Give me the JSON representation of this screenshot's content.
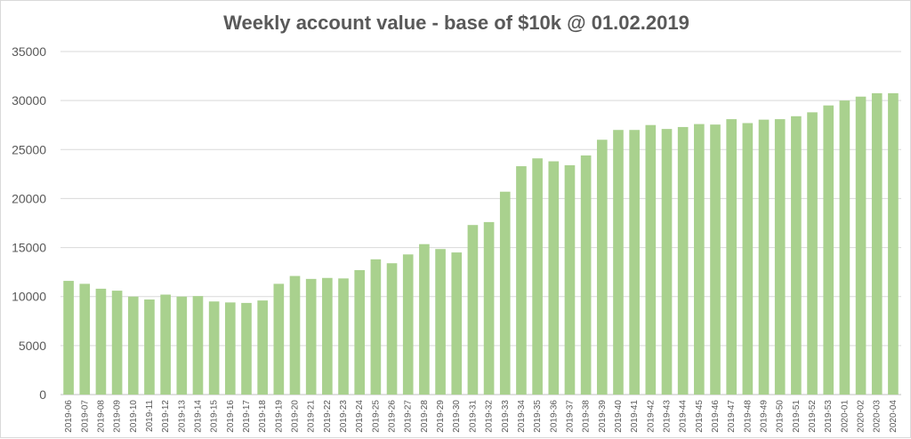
{
  "chart_data": {
    "type": "bar",
    "title": "Weekly account value - base of $10k @ 01.02.2019",
    "xlabel": "",
    "ylabel": "",
    "ylim": [
      0,
      35000
    ],
    "yticks": [
      0,
      5000,
      10000,
      15000,
      20000,
      25000,
      30000,
      35000
    ],
    "grid": true,
    "bar_color": "#a9d18e",
    "categories": [
      "2019-06",
      "2019-07",
      "2019-08",
      "2019-09",
      "2019-10",
      "2019-11",
      "2019-12",
      "2019-13",
      "2019-14",
      "2019-15",
      "2019-16",
      "2019-17",
      "2019-18",
      "2019-19",
      "2019-20",
      "2019-21",
      "2019-22",
      "2019-23",
      "2019-24",
      "2019-25",
      "2019-26",
      "2019-27",
      "2019-28",
      "2019-29",
      "2019-30",
      "2019-31",
      "2019-32",
      "2019-33",
      "2019-34",
      "2019-35",
      "2019-36",
      "2019-37",
      "2019-38",
      "2019-39",
      "2019-40",
      "2019-41",
      "2019-42",
      "2019-43",
      "2019-44",
      "2019-45",
      "2019-46",
      "2019-47",
      "2019-48",
      "2019-49",
      "2019-50",
      "2019-51",
      "2019-52",
      "2019-53",
      "2020-01",
      "2020-02",
      "2020-03",
      "2020-04"
    ],
    "values": [
      11600,
      11300,
      10800,
      10600,
      10000,
      9700,
      10200,
      10000,
      10050,
      9500,
      9400,
      9350,
      9600,
      11300,
      12100,
      11800,
      11900,
      11850,
      12700,
      13800,
      13400,
      14300,
      15350,
      14850,
      14500,
      17300,
      17600,
      20700,
      23300,
      24100,
      23800,
      23400,
      24400,
      26000,
      27000,
      27000,
      27500,
      27100,
      27300,
      27600,
      27550,
      28100,
      27700,
      28050,
      28100,
      28400,
      28800,
      29500,
      30000,
      30400,
      30750,
      30750
    ]
  }
}
